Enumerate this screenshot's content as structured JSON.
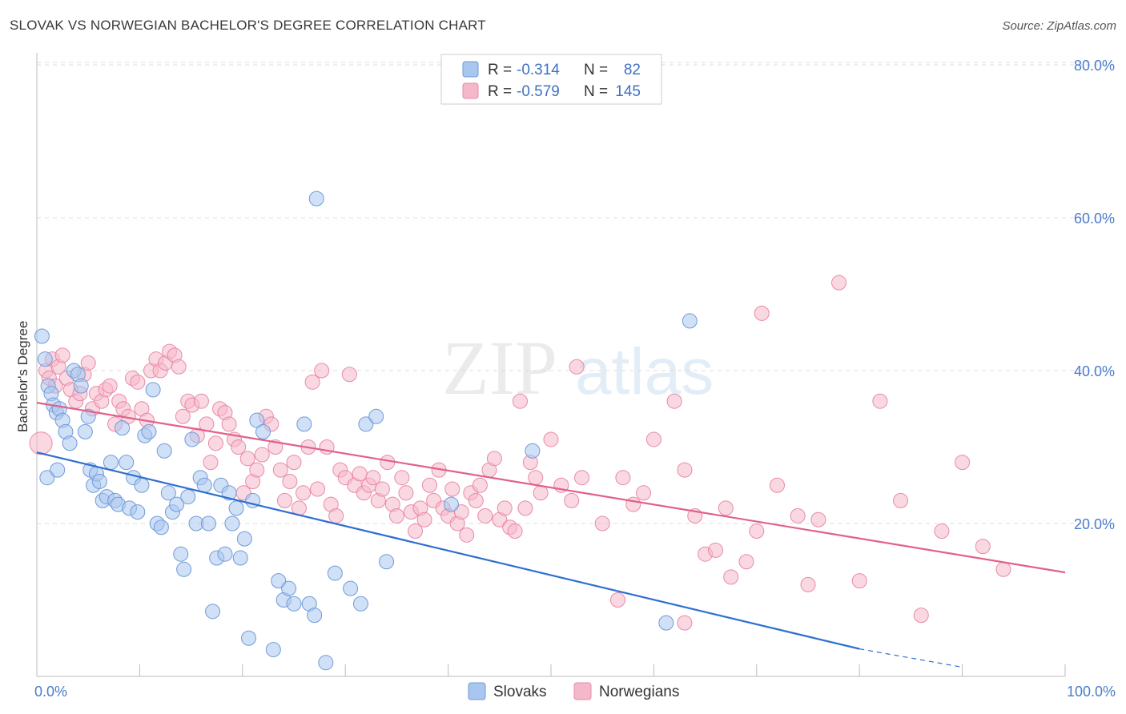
{
  "title": "SLOVAK VS NORWEGIAN BACHELOR'S DEGREE CORRELATION CHART",
  "source": "Source: ZipAtlas.com",
  "watermark": {
    "zip": "ZIP",
    "atlas": "atlas"
  },
  "colors": {
    "slovak_fill": "#a9c6ee",
    "slovak_stroke": "#6f9bd8",
    "slovak_line": "#2f6fd1",
    "norwegian_fill": "#f5b8cb",
    "norwegian_stroke": "#e88aa8",
    "norwegian_line": "#e2608b",
    "tick_text": "#4a7cc9"
  },
  "legend": {
    "r_label": "R =",
    "n_label": "N =",
    "rows": [
      {
        "series": "Slovaks",
        "r": "-0.314",
        "n": "82"
      },
      {
        "series": "Norwegians",
        "r": "-0.579",
        "n": "145"
      }
    ]
  },
  "chart_data": {
    "type": "scatter",
    "title": "SLOVAK VS NORWEGIAN BACHELOR'S DEGREE CORRELATION CHART",
    "xlabel": "",
    "ylabel": "Bachelor's Degree",
    "xlim": [
      0,
      100
    ],
    "ylim": [
      0,
      80
    ],
    "x_tick_labels": [
      "0.0%",
      "100.0%"
    ],
    "y_ticks": [
      20,
      40,
      60,
      80
    ],
    "y_tick_labels": [
      "20.0%",
      "40.0%",
      "60.0%",
      "80.0%"
    ],
    "grid": "horizontal dashed",
    "legend_position": "top-center",
    "series": [
      {
        "name": "Slovaks",
        "r": -0.314,
        "n": 82,
        "trend": {
          "x": [
            0,
            80
          ],
          "y": [
            29.3,
            3.6
          ],
          "dashed_extension_to": [
            90,
            1.2
          ]
        },
        "points": [
          [
            0.5,
            44.5
          ],
          [
            0.8,
            41.5
          ],
          [
            1.1,
            38
          ],
          [
            1.4,
            37
          ],
          [
            1.6,
            35.5
          ],
          [
            1.9,
            34.5
          ],
          [
            2.2,
            35
          ],
          [
            2.5,
            33.5
          ],
          [
            2.8,
            32
          ],
          [
            3.2,
            30.5
          ],
          [
            3.6,
            40
          ],
          [
            4.0,
            39.5
          ],
          [
            4.3,
            38
          ],
          [
            4.7,
            32
          ],
          [
            5.0,
            34
          ],
          [
            5.2,
            27
          ],
          [
            5.5,
            25
          ],
          [
            5.8,
            26.5
          ],
          [
            6.1,
            25.5
          ],
          [
            6.4,
            23
          ],
          [
            6.8,
            23.5
          ],
          [
            7.2,
            28
          ],
          [
            7.6,
            23
          ],
          [
            7.9,
            22.5
          ],
          [
            8.3,
            32.5
          ],
          [
            8.7,
            28
          ],
          [
            9.0,
            22
          ],
          [
            9.4,
            26
          ],
          [
            9.8,
            21.5
          ],
          [
            10.2,
            25
          ],
          [
            10.5,
            31.5
          ],
          [
            10.9,
            32
          ],
          [
            11.3,
            37.5
          ],
          [
            11.7,
            20
          ],
          [
            12.1,
            19.5
          ],
          [
            12.4,
            29.5
          ],
          [
            12.8,
            24
          ],
          [
            13.2,
            21.5
          ],
          [
            13.6,
            22.5
          ],
          [
            14.0,
            16
          ],
          [
            14.3,
            14
          ],
          [
            14.7,
            23.5
          ],
          [
            15.1,
            31
          ],
          [
            15.5,
            20
          ],
          [
            15.9,
            26
          ],
          [
            16.3,
            25
          ],
          [
            16.7,
            20
          ],
          [
            17.1,
            8.5
          ],
          [
            17.5,
            15.5
          ],
          [
            17.9,
            25
          ],
          [
            18.3,
            16
          ],
          [
            18.7,
            24
          ],
          [
            19.0,
            20
          ],
          [
            19.4,
            22
          ],
          [
            19.8,
            15.5
          ],
          [
            20.2,
            18
          ],
          [
            20.6,
            5
          ],
          [
            21.0,
            23
          ],
          [
            21.4,
            33.5
          ],
          [
            22.0,
            32
          ],
          [
            23.0,
            3.5
          ],
          [
            23.5,
            12.5
          ],
          [
            24.0,
            10
          ],
          [
            24.5,
            11.5
          ],
          [
            25.0,
            9.5
          ],
          [
            26.0,
            33
          ],
          [
            26.5,
            9.5
          ],
          [
            27.0,
            8
          ],
          [
            29.0,
            13.5
          ],
          [
            30.5,
            11.5
          ],
          [
            31.5,
            9.5
          ],
          [
            32.0,
            33
          ],
          [
            33.0,
            34
          ],
          [
            34.0,
            15
          ],
          [
            27.2,
            62.5
          ],
          [
            28.1,
            1.8
          ],
          [
            40.3,
            22.5
          ],
          [
            48.2,
            29.5
          ],
          [
            61.2,
            7
          ],
          [
            63.5,
            46.5
          ],
          [
            1.0,
            26
          ],
          [
            2.0,
            27
          ]
        ]
      },
      {
        "name": "Norwegians",
        "r": -0.579,
        "n": 145,
        "trend": {
          "x": [
            0,
            100
          ],
          "y": [
            35.8,
            13.6
          ]
        },
        "points": [
          [
            0.4,
            30.5
          ],
          [
            0.9,
            40
          ],
          [
            1.2,
            39
          ],
          [
            1.5,
            41.5
          ],
          [
            1.8,
            38
          ],
          [
            2.1,
            40.5
          ],
          [
            2.5,
            42
          ],
          [
            2.9,
            39
          ],
          [
            3.3,
            37.5
          ],
          [
            3.8,
            36
          ],
          [
            4.2,
            37
          ],
          [
            4.6,
            39.5
          ],
          [
            5.0,
            41
          ],
          [
            5.4,
            35
          ],
          [
            5.8,
            37
          ],
          [
            6.3,
            36
          ],
          [
            6.7,
            37.5
          ],
          [
            7.1,
            38
          ],
          [
            7.6,
            33
          ],
          [
            8.0,
            36
          ],
          [
            8.4,
            35
          ],
          [
            8.9,
            34
          ],
          [
            9.3,
            39
          ],
          [
            9.8,
            38.5
          ],
          [
            10.2,
            35
          ],
          [
            10.7,
            33.5
          ],
          [
            11.1,
            40
          ],
          [
            11.6,
            41.5
          ],
          [
            12.0,
            40
          ],
          [
            12.5,
            41
          ],
          [
            12.9,
            42.5
          ],
          [
            13.4,
            42
          ],
          [
            13.8,
            40.5
          ],
          [
            14.2,
            34
          ],
          [
            14.7,
            36
          ],
          [
            15.1,
            35.5
          ],
          [
            15.6,
            31.5
          ],
          [
            16.0,
            36
          ],
          [
            16.5,
            33
          ],
          [
            16.9,
            28
          ],
          [
            17.4,
            30.5
          ],
          [
            17.8,
            35
          ],
          [
            18.3,
            34.5
          ],
          [
            18.7,
            33
          ],
          [
            19.2,
            31
          ],
          [
            19.6,
            30
          ],
          [
            20.1,
            24
          ],
          [
            20.5,
            28.5
          ],
          [
            21.0,
            25.5
          ],
          [
            21.4,
            27
          ],
          [
            21.9,
            29
          ],
          [
            22.3,
            34
          ],
          [
            22.8,
            33
          ],
          [
            23.2,
            30
          ],
          [
            23.7,
            27
          ],
          [
            24.1,
            23
          ],
          [
            24.6,
            25.5
          ],
          [
            25.0,
            28
          ],
          [
            25.5,
            22
          ],
          [
            25.9,
            24
          ],
          [
            26.4,
            30
          ],
          [
            26.8,
            38.5
          ],
          [
            27.3,
            24.5
          ],
          [
            27.7,
            40
          ],
          [
            28.2,
            30
          ],
          [
            28.6,
            22.5
          ],
          [
            29.1,
            21
          ],
          [
            29.5,
            27
          ],
          [
            30.0,
            26
          ],
          [
            30.4,
            39.5
          ],
          [
            30.9,
            25
          ],
          [
            31.4,
            26.5
          ],
          [
            31.8,
            24
          ],
          [
            32.3,
            25
          ],
          [
            32.7,
            26
          ],
          [
            33.2,
            23
          ],
          [
            33.6,
            24.5
          ],
          [
            34.1,
            28
          ],
          [
            34.6,
            22.5
          ],
          [
            35.0,
            21
          ],
          [
            35.5,
            26
          ],
          [
            35.9,
            24
          ],
          [
            36.4,
            21.5
          ],
          [
            36.8,
            19
          ],
          [
            37.3,
            22
          ],
          [
            37.7,
            20.5
          ],
          [
            38.2,
            25
          ],
          [
            38.6,
            23
          ],
          [
            39.1,
            27
          ],
          [
            39.5,
            22
          ],
          [
            40.0,
            21
          ],
          [
            40.4,
            24.5
          ],
          [
            40.9,
            20
          ],
          [
            41.3,
            21.5
          ],
          [
            41.8,
            18.5
          ],
          [
            42.2,
            24
          ],
          [
            42.7,
            23
          ],
          [
            43.1,
            25
          ],
          [
            43.6,
            21
          ],
          [
            44.0,
            27
          ],
          [
            44.5,
            28.5
          ],
          [
            45.0,
            20.5
          ],
          [
            45.5,
            22
          ],
          [
            46.0,
            19.5
          ],
          [
            46.5,
            19
          ],
          [
            47.0,
            36
          ],
          [
            47.5,
            22
          ],
          [
            48.0,
            28
          ],
          [
            48.5,
            26
          ],
          [
            49.0,
            24
          ],
          [
            50.0,
            31
          ],
          [
            51.0,
            25
          ],
          [
            52.0,
            23
          ],
          [
            53.0,
            26
          ],
          [
            55.0,
            20
          ],
          [
            57.0,
            26
          ],
          [
            58.0,
            22.5
          ],
          [
            59.0,
            24
          ],
          [
            60.0,
            31
          ],
          [
            62.0,
            36
          ],
          [
            63.0,
            27
          ],
          [
            64.0,
            21
          ],
          [
            65.0,
            16
          ],
          [
            66.0,
            16.5
          ],
          [
            67.0,
            22
          ],
          [
            69.0,
            15
          ],
          [
            70.0,
            19
          ],
          [
            72.0,
            25
          ],
          [
            74.0,
            21
          ],
          [
            75.0,
            12
          ],
          [
            76.0,
            20.5
          ],
          [
            78.0,
            51.5
          ],
          [
            80.0,
            12.5
          ],
          [
            82.0,
            36
          ],
          [
            84.0,
            23
          ],
          [
            86.0,
            8
          ],
          [
            88.0,
            19
          ],
          [
            90.0,
            28
          ],
          [
            92.0,
            17
          ],
          [
            94.0,
            14
          ],
          [
            70.5,
            47.5
          ],
          [
            67.5,
            13
          ],
          [
            63.0,
            7
          ],
          [
            56.5,
            10
          ],
          [
            52.5,
            40.5
          ]
        ]
      }
    ]
  }
}
